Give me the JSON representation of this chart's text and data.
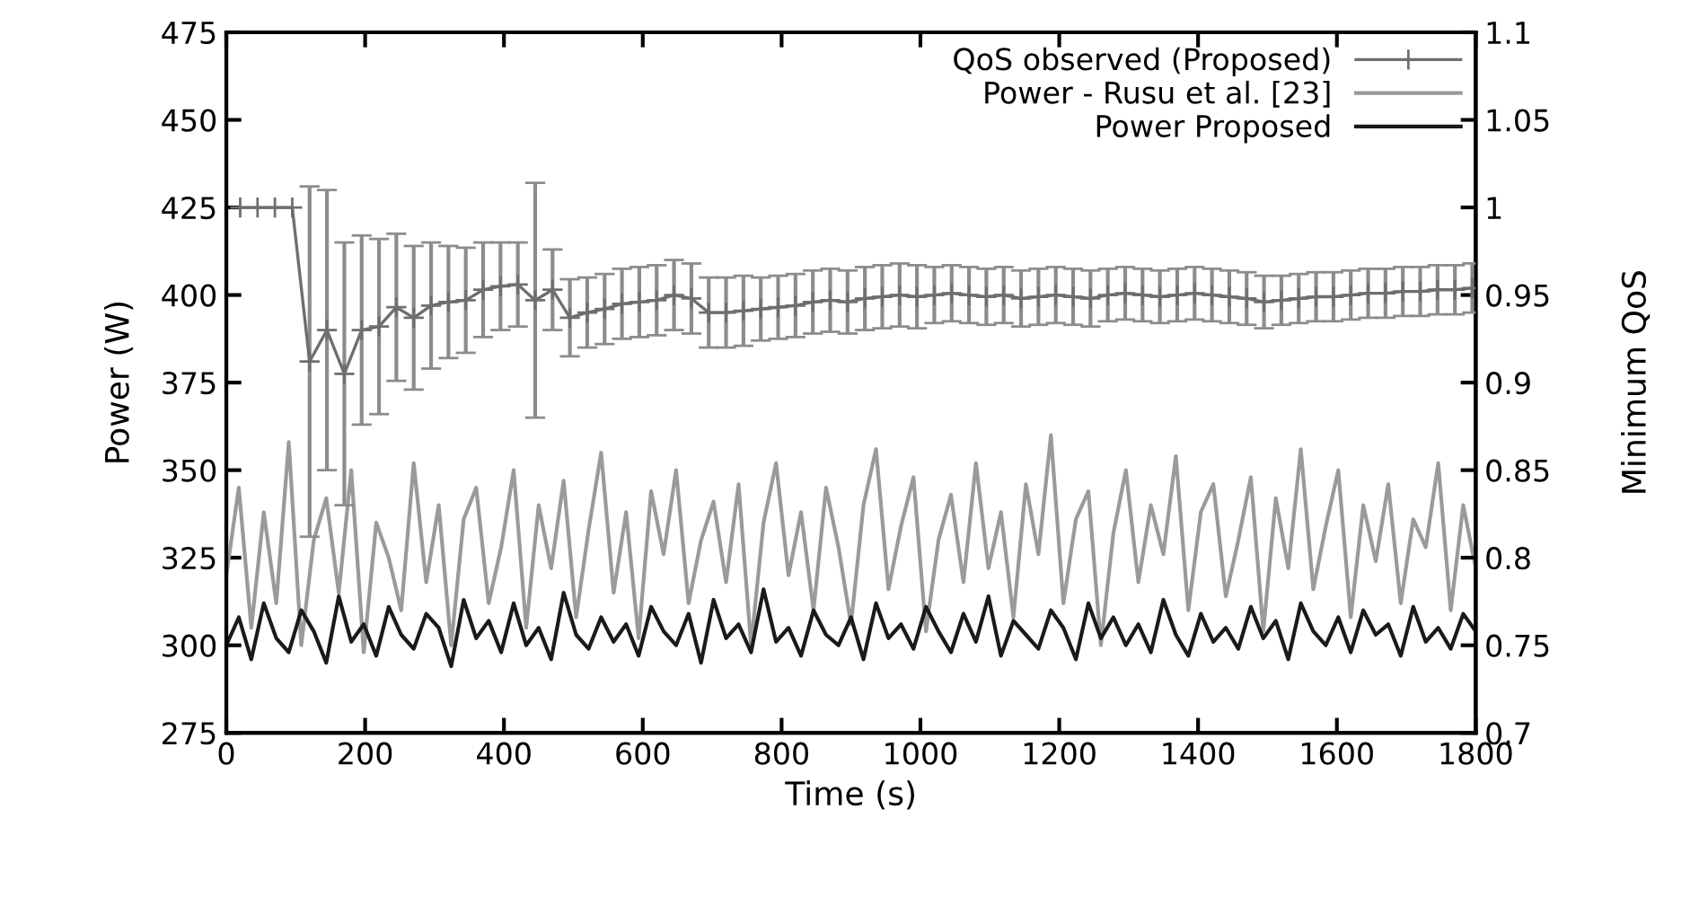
{
  "chart_data": {
    "type": "line",
    "xlabel": "Time (s)",
    "ylabel": "Power (W)",
    "y2label": "Minimum QoS",
    "xlim": [
      0,
      1800
    ],
    "xticks": [
      0,
      200,
      400,
      600,
      800,
      1000,
      1200,
      1400,
      1600,
      1800
    ],
    "ylim": [
      275,
      475
    ],
    "yticks": [
      275,
      300,
      325,
      350,
      375,
      400,
      425,
      450,
      475
    ],
    "y2lim": [
      0.7,
      1.1
    ],
    "y2ticks": [
      0.7,
      0.75,
      0.8,
      0.85,
      0.9,
      0.95,
      1,
      1.05,
      1.1
    ],
    "grid": false,
    "legend": "top right",
    "series": [
      {
        "name": "QoS observed (Proposed)",
        "color": "#6e6e6e",
        "axis": "y2",
        "marker": "cross",
        "x": [
          20,
          45,
          70,
          95,
          120,
          145,
          170,
          195,
          220,
          245,
          270,
          295,
          320,
          345,
          370,
          395,
          420,
          445,
          470,
          495,
          520,
          545,
          570,
          595,
          620,
          645,
          670,
          695,
          720,
          745,
          770,
          795,
          820,
          845,
          870,
          895,
          920,
          945,
          970,
          995,
          1020,
          1045,
          1070,
          1095,
          1120,
          1145,
          1170,
          1195,
          1220,
          1245,
          1270,
          1295,
          1320,
          1345,
          1370,
          1395,
          1420,
          1445,
          1470,
          1495,
          1520,
          1545,
          1570,
          1595,
          1620,
          1645,
          1670,
          1695,
          1720,
          1745,
          1770,
          1795
        ],
        "values": [
          1,
          1,
          1,
          1,
          0.912,
          0.93,
          0.905,
          0.93,
          0.932,
          0.943,
          0.937,
          0.944,
          0.946,
          0.947,
          0.953,
          0.955,
          0.956,
          0.947,
          0.953,
          0.937,
          0.94,
          0.942,
          0.945,
          0.946,
          0.947,
          0.95,
          0.948,
          0.94,
          0.94,
          0.941,
          0.942,
          0.943,
          0.944,
          0.946,
          0.947,
          0.946,
          0.948,
          0.949,
          0.95,
          0.949,
          0.95,
          0.951,
          0.95,
          0.949,
          0.95,
          0.948,
          0.949,
          0.95,
          0.949,
          0.948,
          0.95,
          0.951,
          0.95,
          0.949,
          0.95,
          0.951,
          0.95,
          0.949,
          0.948,
          0.946,
          0.947,
          0.948,
          0.949,
          0.949,
          0.95,
          0.951,
          0.951,
          0.952,
          0.952,
          0.953,
          0.953,
          0.954
        ],
        "errors": [
          null,
          null,
          null,
          null,
          0.1,
          0.08,
          0.075,
          0.054,
          0.05,
          0.042,
          0.041,
          0.036,
          0.032,
          0.03,
          0.027,
          0.025,
          0.024,
          0.067,
          0.023,
          0.022,
          0.02,
          0.02,
          0.02,
          0.02,
          0.02,
          0.02,
          0.02,
          0.02,
          0.02,
          0.02,
          0.018,
          0.018,
          0.018,
          0.018,
          0.018,
          0.018,
          0.018,
          0.018,
          0.018,
          0.018,
          0.016,
          0.016,
          0.016,
          0.016,
          0.016,
          0.016,
          0.016,
          0.016,
          0.016,
          0.016,
          0.015,
          0.015,
          0.015,
          0.015,
          0.015,
          0.015,
          0.015,
          0.015,
          0.015,
          0.015,
          0.014,
          0.014,
          0.014,
          0.014,
          0.014,
          0.014,
          0.014,
          0.014,
          0.014,
          0.014,
          0.014,
          0.014
        ]
      },
      {
        "name": "Power - Rusu et al. [23]",
        "color": "#9a9a9a",
        "marker": "none",
        "x": [
          0,
          18,
          36,
          54,
          72,
          90,
          108,
          126,
          144,
          162,
          180,
          198,
          216,
          234,
          252,
          270,
          288,
          306,
          324,
          342,
          360,
          378,
          396,
          414,
          432,
          450,
          468,
          486,
          504,
          522,
          540,
          558,
          576,
          594,
          612,
          630,
          648,
          666,
          684,
          702,
          720,
          738,
          756,
          774,
          792,
          810,
          828,
          846,
          864,
          882,
          900,
          918,
          936,
          954,
          972,
          990,
          1008,
          1026,
          1044,
          1062,
          1080,
          1098,
          1116,
          1134,
          1152,
          1170,
          1188,
          1206,
          1224,
          1242,
          1260,
          1278,
          1296,
          1314,
          1332,
          1350,
          1368,
          1386,
          1404,
          1422,
          1440,
          1458,
          1476,
          1494,
          1512,
          1530,
          1548,
          1566,
          1584,
          1602,
          1620,
          1638,
          1656,
          1674,
          1692,
          1710,
          1728,
          1746,
          1764,
          1782,
          1800
        ],
        "values": [
          320,
          345,
          305,
          338,
          312,
          358,
          300,
          330,
          342,
          315,
          350,
          298,
          335,
          325,
          310,
          352,
          318,
          340,
          300,
          336,
          345,
          312,
          328,
          350,
          305,
          340,
          322,
          347,
          308,
          333,
          355,
          315,
          338,
          302,
          344,
          326,
          350,
          312,
          330,
          341,
          318,
          346,
          300,
          335,
          352,
          320,
          338,
          310,
          345,
          328,
          306,
          340,
          356,
          316,
          334,
          348,
          304,
          330,
          343,
          318,
          352,
          322,
          338,
          308,
          346,
          326,
          360,
          312,
          336,
          344,
          300,
          332,
          350,
          318,
          340,
          326,
          354,
          310,
          338,
          346,
          314,
          330,
          348,
          304,
          342,
          322,
          356,
          316,
          334,
          350,
          308,
          340,
          324,
          346,
          312,
          336,
          328,
          352,
          310,
          340,
          322
        ]
      },
      {
        "name": "Power Proposed",
        "color": "#1a1a1a",
        "marker": "none",
        "x": [
          0,
          18,
          36,
          54,
          72,
          90,
          108,
          126,
          144,
          162,
          180,
          198,
          216,
          234,
          252,
          270,
          288,
          306,
          324,
          342,
          360,
          378,
          396,
          414,
          432,
          450,
          468,
          486,
          504,
          522,
          540,
          558,
          576,
          594,
          612,
          630,
          648,
          666,
          684,
          702,
          720,
          738,
          756,
          774,
          792,
          810,
          828,
          846,
          864,
          882,
          900,
          918,
          936,
          954,
          972,
          990,
          1008,
          1026,
          1044,
          1062,
          1080,
          1098,
          1116,
          1134,
          1152,
          1170,
          1188,
          1206,
          1224,
          1242,
          1260,
          1278,
          1296,
          1314,
          1332,
          1350,
          1368,
          1386,
          1404,
          1422,
          1440,
          1458,
          1476,
          1494,
          1512,
          1530,
          1548,
          1566,
          1584,
          1602,
          1620,
          1638,
          1656,
          1674,
          1692,
          1710,
          1728,
          1746,
          1764,
          1782,
          1800
        ],
        "values": [
          300,
          308,
          296,
          312,
          302,
          298,
          310,
          304,
          295,
          314,
          301,
          306,
          297,
          311,
          303,
          299,
          309,
          305,
          294,
          313,
          302,
          307,
          298,
          312,
          300,
          305,
          296,
          315,
          303,
          299,
          308,
          301,
          306,
          297,
          311,
          304,
          300,
          309,
          295,
          313,
          302,
          306,
          298,
          316,
          301,
          305,
          297,
          310,
          303,
          300,
          308,
          296,
          312,
          302,
          306,
          299,
          311,
          304,
          298,
          309,
          301,
          314,
          297,
          307,
          303,
          299,
          310,
          305,
          296,
          312,
          302,
          308,
          300,
          306,
          298,
          313,
          303,
          297,
          309,
          301,
          305,
          299,
          311,
          302,
          307,
          296,
          312,
          304,
          300,
          308,
          298,
          310,
          303,
          306,
          297,
          311,
          301,
          305,
          299,
          309,
          304
        ]
      }
    ]
  }
}
